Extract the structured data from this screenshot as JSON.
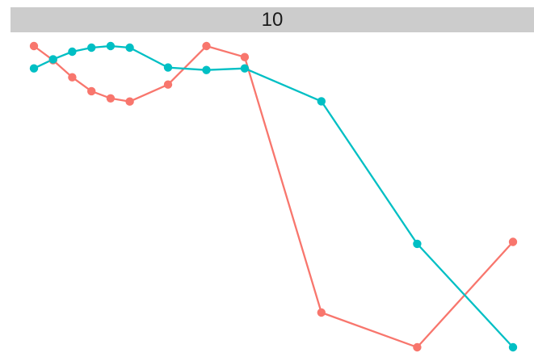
{
  "chart_data": {
    "type": "line",
    "panel_label": "10",
    "title": "",
    "xlabel": "",
    "ylabel": "",
    "x_scale": "log10",
    "grid": false,
    "legend": "none",
    "xlim": [
      1,
      100000
    ],
    "ylim": [
      0.005,
      0.96
    ],
    "series": [
      {
        "color": "#F8766D",
        "points": [
          {
            "x": 1,
            "y": 0.96
          },
          {
            "x": 1.585,
            "y": 0.915
          },
          {
            "x": 2.512,
            "y": 0.861
          },
          {
            "x": 3.981,
            "y": 0.817
          },
          {
            "x": 6.31,
            "y": 0.794
          },
          {
            "x": 10,
            "y": 0.784
          },
          {
            "x": 25.12,
            "y": 0.838
          },
          {
            "x": 63.1,
            "y": 0.96
          },
          {
            "x": 158.5,
            "y": 0.925
          },
          {
            "x": 1000,
            "y": 0.115
          },
          {
            "x": 10000,
            "y": 0.005
          },
          {
            "x": 100000,
            "y": 0.339
          }
        ]
      },
      {
        "color": "#00BFC4",
        "points": [
          {
            "x": 1,
            "y": 0.889
          },
          {
            "x": 1.585,
            "y": 0.918
          },
          {
            "x": 2.512,
            "y": 0.942
          },
          {
            "x": 3.981,
            "y": 0.955
          },
          {
            "x": 6.31,
            "y": 0.96
          },
          {
            "x": 10,
            "y": 0.955
          },
          {
            "x": 25.12,
            "y": 0.892
          },
          {
            "x": 63.1,
            "y": 0.884
          },
          {
            "x": 158.5,
            "y": 0.889
          },
          {
            "x": 1000,
            "y": 0.785
          },
          {
            "x": 10000,
            "y": 0.333
          },
          {
            "x": 100000,
            "y": 0.005
          }
        ]
      }
    ]
  }
}
